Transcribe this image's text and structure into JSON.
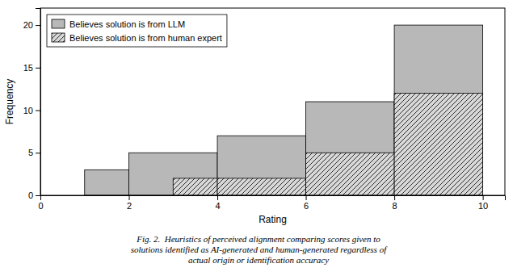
{
  "chart_data": {
    "type": "histogram",
    "xlabel": "Rating",
    "ylabel": "Frequency",
    "caption": "Fig. 2.  Heuristics of perceived alignment comparing scores given to\nsolutions identified as AI-generated and human-generated regardless of\nactual origin or identification accuracy",
    "series": [
      {
        "name": "Believes solution is from LLM",
        "color": "#b8b8b8",
        "bins": [
          1,
          2,
          4,
          6,
          8,
          10
        ],
        "values": [
          3,
          5,
          7,
          11,
          20
        ]
      },
      {
        "name": "Believes solution is from human expert",
        "color": "#d8d8d8",
        "bins": [
          3,
          4,
          6,
          8,
          10
        ],
        "values": [
          2,
          2,
          5,
          12
        ]
      }
    ],
    "xlim": [
      0,
      10.5
    ],
    "ylim": [
      0,
      22
    ],
    "xticks": [
      0,
      2,
      4,
      6,
      8,
      10
    ],
    "yticks": [
      0,
      5,
      10,
      15,
      20
    ],
    "legend": "upper left"
  }
}
